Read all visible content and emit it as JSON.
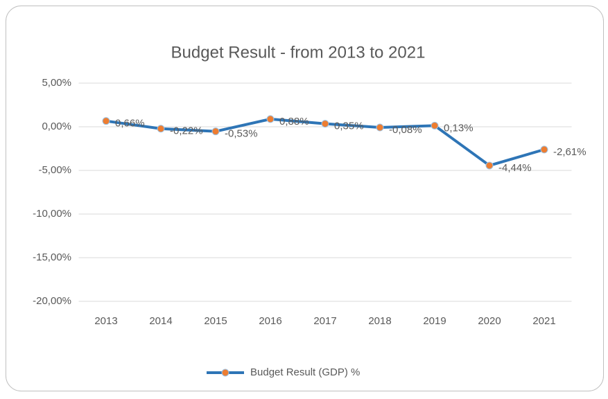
{
  "chart_data": {
    "type": "line",
    "title": "Budget Result - from 2013 to 2021",
    "categories": [
      "2013",
      "2014",
      "2015",
      "2016",
      "2017",
      "2018",
      "2019",
      "2020",
      "2021"
    ],
    "series": [
      {
        "name": "Budget Result (GDP) %",
        "color": "#2e75b6",
        "marker_color": "#ed7d31",
        "values": [
          0.66,
          -0.22,
          -0.53,
          0.88,
          0.35,
          -0.08,
          0.13,
          -4.44,
          -2.61
        ],
        "value_labels": [
          "0,66%",
          "-0,22%",
          "-0,53%",
          "0,88%",
          "0,35%",
          "-0,08%",
          "0,13%",
          "-4,44%",
          "-2,61%"
        ]
      }
    ],
    "ylim": [
      -20,
      5
    ],
    "yticks": [
      {
        "value": 5,
        "label": "5,00%"
      },
      {
        "value": 0,
        "label": "0,00%"
      },
      {
        "value": -5,
        "label": "-5,00%"
      },
      {
        "value": -10,
        "label": "-10,00%"
      },
      {
        "value": -15,
        "label": "-15,00%"
      },
      {
        "value": -20,
        "label": "-20,00%"
      }
    ],
    "grid": true,
    "legend": "bottom"
  }
}
